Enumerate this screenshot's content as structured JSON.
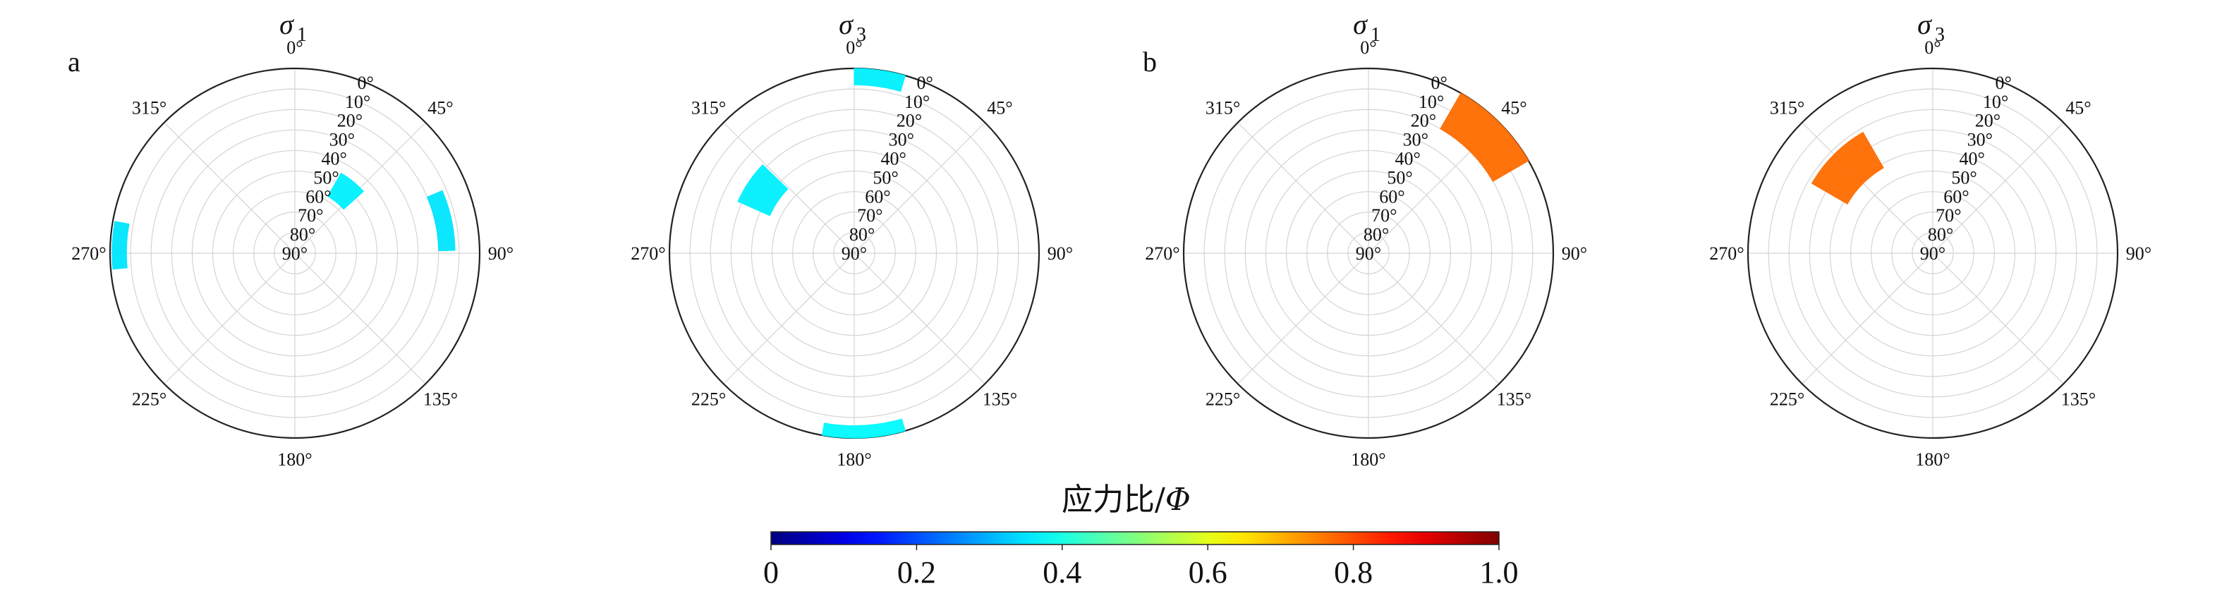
{
  "panel_labels": [
    "a",
    "b"
  ],
  "colorbar": {
    "label_prefix": "应力比/",
    "label_symbol": "Φ",
    "ticks": [
      "0",
      "0.2",
      "0.4",
      "0.6",
      "0.8",
      "1.0"
    ],
    "range": [
      0,
      1
    ],
    "colormap": "jet"
  },
  "chart_data": [
    {
      "type": "polar",
      "title": "σ",
      "title_sub": "1",
      "group": "a",
      "azimuth_labels": [
        "0°",
        "45°",
        "90°",
        "135°",
        "180°",
        "225°",
        "270°",
        "315°"
      ],
      "radial_labels": [
        "0°",
        "10°",
        "20°",
        "30°",
        "40°",
        "50°",
        "60°",
        "70°",
        "80°",
        "90°"
      ],
      "clusters": [
        {
          "azimuth": [
            265,
            280
          ],
          "plunge": [
            1,
            8
          ],
          "stress_ratio": 0.35
        },
        {
          "azimuth": [
            30,
            48
          ],
          "plunge": [
            45,
            58
          ],
          "stress_ratio": 0.36
        },
        {
          "azimuth": [
            67,
            89
          ],
          "plunge": [
            12,
            20
          ],
          "stress_ratio": 0.35
        }
      ]
    },
    {
      "type": "polar",
      "title": "σ",
      "title_sub": "3",
      "group": "a",
      "azimuth_labels": [
        "0°",
        "45°",
        "90°",
        "135°",
        "180°",
        "225°",
        "270°",
        "315°"
      ],
      "radial_labels": [
        "0°",
        "10°",
        "20°",
        "30°",
        "40°",
        "50°",
        "60°",
        "70°",
        "80°",
        "90°"
      ],
      "clusters": [
        {
          "azimuth": [
            0,
            16
          ],
          "plunge": [
            0,
            8
          ],
          "stress_ratio": 0.36
        },
        {
          "azimuth": [
            294,
            314
          ],
          "plunge": [
            28,
            45
          ],
          "stress_ratio": 0.36
        },
        {
          "azimuth": [
            164,
            190
          ],
          "plunge": [
            0,
            6
          ],
          "stress_ratio": 0.37
        }
      ]
    },
    {
      "type": "polar",
      "title": "σ",
      "title_sub": "1",
      "group": "b",
      "azimuth_labels": [
        "0°",
        "45°",
        "90°",
        "135°",
        "180°",
        "225°",
        "270°",
        "315°"
      ],
      "radial_labels": [
        "0°",
        "10°",
        "20°",
        "30°",
        "40°",
        "50°",
        "60°",
        "70°",
        "80°",
        "90°"
      ],
      "clusters": [
        {
          "azimuth": [
            30,
            60
          ],
          "plunge": [
            0,
            20
          ],
          "stress_ratio": 0.77
        }
      ]
    },
    {
      "type": "polar",
      "title": "σ",
      "title_sub": "3",
      "group": "b",
      "azimuth_labels": [
        "0°",
        "45°",
        "90°",
        "135°",
        "180°",
        "225°",
        "270°",
        "315°"
      ],
      "radial_labels": [
        "0°",
        "10°",
        "20°",
        "30°",
        "40°",
        "50°",
        "60°",
        "70°",
        "80°",
        "90°"
      ],
      "clusters": [
        {
          "azimuth": [
            300,
            330
          ],
          "plunge": [
            22,
            42
          ],
          "stress_ratio": 0.77
        }
      ]
    }
  ]
}
